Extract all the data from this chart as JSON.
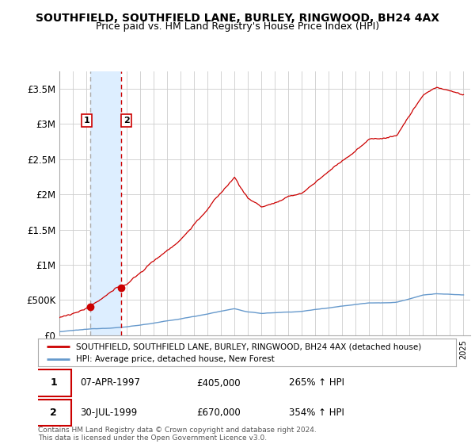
{
  "title": "SOUTHFIELD, SOUTHFIELD LANE, BURLEY, RINGWOOD, BH24 4AX",
  "subtitle": "Price paid vs. HM Land Registry's House Price Index (HPI)",
  "legend_line1": "SOUTHFIELD, SOUTHFIELD LANE, BURLEY, RINGWOOD, BH24 4AX (detached house)",
  "legend_line2": "HPI: Average price, detached house, New Forest",
  "sale1_date": "07-APR-1997",
  "sale1_price": "£405,000",
  "sale1_hpi": "265% ↑ HPI",
  "sale2_date": "30-JUL-1999",
  "sale2_price": "£670,000",
  "sale2_hpi": "354% ↑ HPI",
  "footnote": "Contains HM Land Registry data © Crown copyright and database right 2024.\nThis data is licensed under the Open Government Licence v3.0.",
  "ylim": [
    0,
    3750000
  ],
  "yticks": [
    0,
    500000,
    1000000,
    1500000,
    2000000,
    2500000,
    3000000,
    3500000
  ],
  "ytick_labels": [
    "£0",
    "£500K",
    "£1M",
    "£1.5M",
    "£2M",
    "£2.5M",
    "£3M",
    "£3.5M"
  ],
  "sale1_x": 1997.27,
  "sale1_y": 405000,
  "sale2_x": 1999.58,
  "sale2_y": 670000,
  "shade_x1": 1997.27,
  "shade_x2": 1999.58,
  "red_line_color": "#cc0000",
  "blue_line_color": "#6699cc",
  "shade_color": "#ddeeff",
  "grid_color": "#cccccc",
  "background_color": "#ffffff",
  "title_fontsize": 10,
  "subtitle_fontsize": 9,
  "xlim_left": 1995.0,
  "xlim_right": 2025.5
}
